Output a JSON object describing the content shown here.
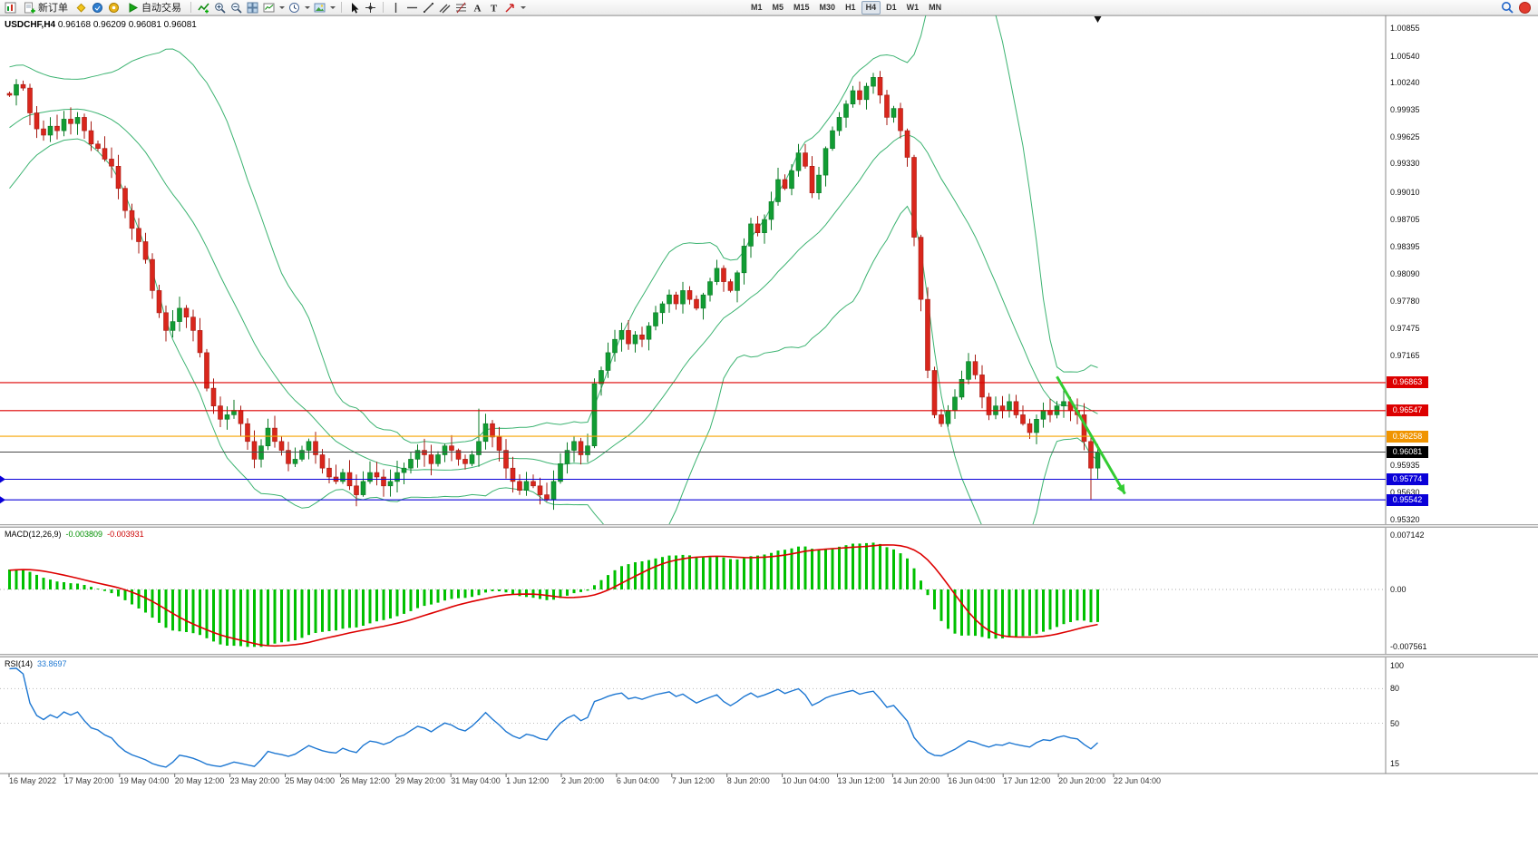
{
  "toolbar": {
    "new_order_label": "新订单",
    "autotrading_label": "自动交易",
    "timeframes": [
      "M1",
      "M5",
      "M15",
      "M30",
      "H1",
      "H4",
      "D1",
      "W1",
      "MN"
    ],
    "active_timeframe": "H4"
  },
  "chart_data": {
    "type": "candlestick",
    "symbol_label": "USDCHF,H4",
    "ohlc_label": "0.96168 0.96209 0.96081 0.96081",
    "price_axis_ticks": [
      "1.00855",
      "1.00540",
      "1.00240",
      "0.99935",
      "0.99625",
      "0.99330",
      "0.99010",
      "0.98705",
      "0.98395",
      "0.98090",
      "0.97780",
      "0.97475",
      "0.97165",
      "0.95935",
      "0.95630",
      "0.95320"
    ],
    "y_range": {
      "top": 1.00855,
      "bottom": 0.9532
    },
    "bull_color": "#119c33",
    "bull_border": "#0b7a25",
    "bear_color": "#d9261c",
    "bear_border": "#a51a12",
    "bollinger": {
      "period": 20,
      "deviation": 2,
      "color": "#3cb371"
    },
    "pre_closes": [
      0.99,
      0.9908,
      0.9916,
      0.9924,
      0.9932,
      0.994,
      0.9948,
      0.9956,
      0.9964,
      0.9972,
      0.998,
      0.9986,
      0.9992,
      0.9996,
      1.0,
      1.0004,
      1.0008,
      1.001,
      1.0011,
      1.0012
    ],
    "closes": [
      1.001,
      1.0022,
      1.0018,
      0.999,
      0.9972,
      0.9965,
      0.9975,
      0.997,
      0.9983,
      0.9978,
      0.9985,
      0.997,
      0.9955,
      0.995,
      0.9938,
      0.993,
      0.9905,
      0.988,
      0.986,
      0.9845,
      0.9825,
      0.979,
      0.9765,
      0.9745,
      0.9755,
      0.977,
      0.976,
      0.9745,
      0.972,
      0.968,
      0.966,
      0.9645,
      0.965,
      0.9655,
      0.964,
      0.962,
      0.96,
      0.9615,
      0.9635,
      0.962,
      0.961,
      0.9595,
      0.96,
      0.961,
      0.962,
      0.9605,
      0.959,
      0.958,
      0.9575,
      0.9585,
      0.957,
      0.956,
      0.9575,
      0.9585,
      0.958,
      0.957,
      0.9575,
      0.9585,
      0.959,
      0.96,
      0.961,
      0.9605,
      0.9595,
      0.9605,
      0.9615,
      0.961,
      0.96,
      0.9595,
      0.9605,
      0.962,
      0.964,
      0.9625,
      0.961,
      0.959,
      0.9575,
      0.9565,
      0.9575,
      0.957,
      0.956,
      0.9555,
      0.9575,
      0.9595,
      0.961,
      0.962,
      0.9605,
      0.9615,
      0.9685,
      0.97,
      0.972,
      0.9735,
      0.9745,
      0.973,
      0.974,
      0.9735,
      0.975,
      0.9765,
      0.9775,
      0.9785,
      0.9775,
      0.979,
      0.978,
      0.977,
      0.9785,
      0.98,
      0.9815,
      0.98,
      0.979,
      0.981,
      0.984,
      0.9865,
      0.9855,
      0.987,
      0.989,
      0.9915,
      0.9905,
      0.9925,
      0.9945,
      0.993,
      0.99,
      0.992,
      0.995,
      0.997,
      0.9985,
      1.0,
      1.0015,
      1.0005,
      1.002,
      1.003,
      1.001,
      0.9985,
      0.9995,
      0.997,
      0.994,
      0.985,
      0.978,
      0.97,
      0.965,
      0.964,
      0.9655,
      0.967,
      0.969,
      0.971,
      0.9695,
      0.967,
      0.965,
      0.966,
      0.9655,
      0.9665,
      0.965,
      0.964,
      0.963,
      0.9645,
      0.9655,
      0.965,
      0.966,
      0.9665,
      0.9655,
      0.965,
      0.962,
      0.959,
      0.9608
    ],
    "wick_high_overrides": {
      "1": 1.0028,
      "69": 0.9657,
      "127": 1.0035
    },
    "wick_low_overrides": {
      "51": 0.9547,
      "159": 0.9555
    },
    "levels": [
      {
        "price": 0.96863,
        "label": "0.96863",
        "color": "#dd0000",
        "tag_bg": "#dd0000"
      },
      {
        "price": 0.96547,
        "label": "0.96547",
        "color": "#dd0000",
        "tag_bg": "#dd0000"
      },
      {
        "price": 0.96258,
        "label": "0.96258",
        "color": "#f7a400",
        "tag_bg": "#f09400"
      },
      {
        "price": 0.96081,
        "label": "0.96081",
        "color": "#4a4a4a",
        "tag_bg": "#000000"
      },
      {
        "price": 0.95774,
        "label": "0.95774",
        "color": "#0a00d8",
        "tag_bg": "#0a00d8",
        "left_marker": true
      },
      {
        "price": 0.95542,
        "label": "0.95542",
        "color": "#0a00d8",
        "tag_bg": "#0a00d8",
        "left_marker": true
      }
    ],
    "trend_arrow": {
      "from_bar": 154,
      "from_price": 0.9693,
      "to_bar": 164,
      "to_price": 0.9561,
      "color": "#33cc33"
    },
    "macd": {
      "title": "MACD(12,26,9)",
      "value": "-0.003809",
      "signal": "-0.003931",
      "axis": [
        "0.007142",
        "0.00",
        "-0.007561"
      ],
      "hist_color": "#00c000",
      "signal_color": "#dd0000"
    },
    "rsi": {
      "title": "RSI(14)",
      "value": "33.8697",
      "axis": [
        "100",
        "80",
        "50",
        "15"
      ],
      "color": "#1d77d2"
    },
    "time_labels": [
      "16 May 2022",
      "17 May 20:00",
      "19 May 04:00",
      "20 May 12:00",
      "23 May 20:00",
      "25 May 04:00",
      "26 May 12:00",
      "29 May 20:00",
      "31 May 04:00",
      "1 Jun 12:00",
      "2 Jun 20:00",
      "6 Jun 04:00",
      "7 Jun 12:00",
      "8 Jun 20:00",
      "10 Jun 04:00",
      "13 Jun 12:00",
      "14 Jun 20:00",
      "16 Jun 04:00",
      "17 Jun 12:00",
      "20 Jun 20:00",
      "22 Jun 04:00"
    ]
  }
}
